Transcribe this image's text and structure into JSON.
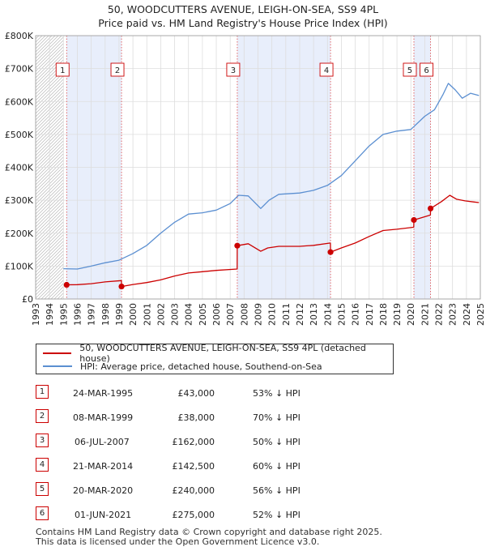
{
  "title": {
    "line1": "50, WOODCUTTERS AVENUE, LEIGH-ON-SEA, SS9 4PL",
    "line2": "Price paid vs. HM Land Registry's House Price Index (HPI)"
  },
  "chart_data": {
    "type": "line",
    "xlim": [
      1993,
      2025
    ],
    "ylim": [
      0,
      800000
    ],
    "x_ticks": [
      "1993",
      "1994",
      "1995",
      "1996",
      "1997",
      "1998",
      "1999",
      "2000",
      "2001",
      "2002",
      "2003",
      "2004",
      "2005",
      "2006",
      "2007",
      "2008",
      "2009",
      "2010",
      "2011",
      "2012",
      "2013",
      "2014",
      "2015",
      "2016",
      "2017",
      "2018",
      "2019",
      "2020",
      "2021",
      "2022",
      "2023",
      "2024",
      "2025"
    ],
    "y_ticks": [
      {
        "value": 0,
        "label": "£0"
      },
      {
        "value": 100000,
        "label": "£100K"
      },
      {
        "value": 200000,
        "label": "£200K"
      },
      {
        "value": 300000,
        "label": "£300K"
      },
      {
        "value": 400000,
        "label": "£400K"
      },
      {
        "value": 500000,
        "label": "£500K"
      },
      {
        "value": 600000,
        "label": "£600K"
      },
      {
        "value": 700000,
        "label": "£700K"
      },
      {
        "value": 800000,
        "label": "£800K"
      }
    ],
    "grid": true,
    "hatched_range": [
      1993,
      1995.0
    ],
    "colors": {
      "property": "#cc0000",
      "hpi": "#5b8fd1",
      "shade": "#e8eefb"
    },
    "shaded_periods": [
      [
        1995.23,
        1999.18
      ],
      [
        2007.51,
        2014.22
      ],
      [
        2020.22,
        2021.42
      ]
    ],
    "series": [
      {
        "name": "50, WOODCUTTERS AVENUE, LEIGH-ON-SEA, SS9 4PL (detached house)",
        "color": "#cc0000",
        "points": [
          [
            1995.23,
            43000
          ],
          [
            1996,
            43500
          ],
          [
            1997,
            46500
          ],
          [
            1998,
            52000
          ],
          [
            1999.17,
            56000
          ],
          [
            1999.18,
            38000
          ],
          [
            2000,
            44000
          ],
          [
            2001,
            50000
          ],
          [
            2002,
            58000
          ],
          [
            2003,
            70000
          ],
          [
            2004,
            79000
          ],
          [
            2005,
            83000
          ],
          [
            2006,
            87000
          ],
          [
            2007.5,
            91000
          ],
          [
            2007.51,
            162000
          ],
          [
            2008.3,
            168000
          ],
          [
            2009.2,
            145000
          ],
          [
            2009.7,
            155000
          ],
          [
            2010.5,
            160000
          ],
          [
            2012,
            160000
          ],
          [
            2013,
            163000
          ],
          [
            2014.21,
            170000
          ],
          [
            2014.22,
            142500
          ],
          [
            2015,
            155000
          ],
          [
            2016,
            170000
          ],
          [
            2017,
            190000
          ],
          [
            2018,
            208000
          ],
          [
            2019,
            212000
          ],
          [
            2020.21,
            218000
          ],
          [
            2020.22,
            240000
          ],
          [
            2021.41,
            255000
          ],
          [
            2021.42,
            275000
          ],
          [
            2022.2,
            296000
          ],
          [
            2022.8,
            315000
          ],
          [
            2023.3,
            303000
          ],
          [
            2023.9,
            298000
          ],
          [
            2024.5,
            295000
          ],
          [
            2024.9,
            293000
          ]
        ]
      },
      {
        "name": "HPI: Average price, detached house, Southend-on-Sea",
        "color": "#5b8fd1",
        "points": [
          [
            1995,
            92000
          ],
          [
            1996,
            91000
          ],
          [
            1997,
            100000
          ],
          [
            1998,
            110000
          ],
          [
            1999,
            118000
          ],
          [
            2000,
            138000
          ],
          [
            2001,
            163000
          ],
          [
            2002,
            200000
          ],
          [
            2003,
            233000
          ],
          [
            2004,
            258000
          ],
          [
            2005,
            262000
          ],
          [
            2006,
            270000
          ],
          [
            2007,
            290000
          ],
          [
            2007.6,
            315000
          ],
          [
            2008.3,
            313000
          ],
          [
            2009.2,
            275000
          ],
          [
            2009.8,
            300000
          ],
          [
            2010.5,
            318000
          ],
          [
            2012,
            322000
          ],
          [
            2013,
            330000
          ],
          [
            2014,
            345000
          ],
          [
            2015,
            375000
          ],
          [
            2016,
            420000
          ],
          [
            2017,
            465000
          ],
          [
            2018,
            500000
          ],
          [
            2019,
            510000
          ],
          [
            2020,
            515000
          ],
          [
            2021,
            555000
          ],
          [
            2021.7,
            575000
          ],
          [
            2022.3,
            620000
          ],
          [
            2022.7,
            655000
          ],
          [
            2023.2,
            635000
          ],
          [
            2023.7,
            610000
          ],
          [
            2024.3,
            625000
          ],
          [
            2024.9,
            618000
          ]
        ]
      }
    ],
    "sales": [
      {
        "n": "1",
        "x": 1995.23,
        "price": 43000
      },
      {
        "n": "2",
        "x": 1999.18,
        "price": 38000
      },
      {
        "n": "3",
        "x": 2007.51,
        "price": 162000
      },
      {
        "n": "4",
        "x": 2014.22,
        "price": 142500
      },
      {
        "n": "5",
        "x": 2020.22,
        "price": 240000
      },
      {
        "n": "6",
        "x": 2021.42,
        "price": 275000
      }
    ]
  },
  "legend": {
    "property_label": "50, WOODCUTTERS AVENUE, LEIGH-ON-SEA, SS9 4PL (detached house)",
    "hpi_label": "HPI: Average price, detached house, Southend-on-Sea"
  },
  "sales_table": [
    {
      "n": "1",
      "date": "24-MAR-1995",
      "price": "£43,000",
      "hpi": "53% ↓ HPI"
    },
    {
      "n": "2",
      "date": "08-MAR-1999",
      "price": "£38,000",
      "hpi": "70% ↓ HPI"
    },
    {
      "n": "3",
      "date": "06-JUL-2007",
      "price": "£162,000",
      "hpi": "50% ↓ HPI"
    },
    {
      "n": "4",
      "date": "21-MAR-2014",
      "price": "£142,500",
      "hpi": "60% ↓ HPI"
    },
    {
      "n": "5",
      "date": "20-MAR-2020",
      "price": "£240,000",
      "hpi": "56% ↓ HPI"
    },
    {
      "n": "6",
      "date": "01-JUN-2021",
      "price": "£275,000",
      "hpi": "52% ↓ HPI"
    }
  ],
  "footer": {
    "line1": "Contains HM Land Registry data © Crown copyright and database right 2025.",
    "line2": "This data is licensed under the Open Government Licence v3.0."
  }
}
